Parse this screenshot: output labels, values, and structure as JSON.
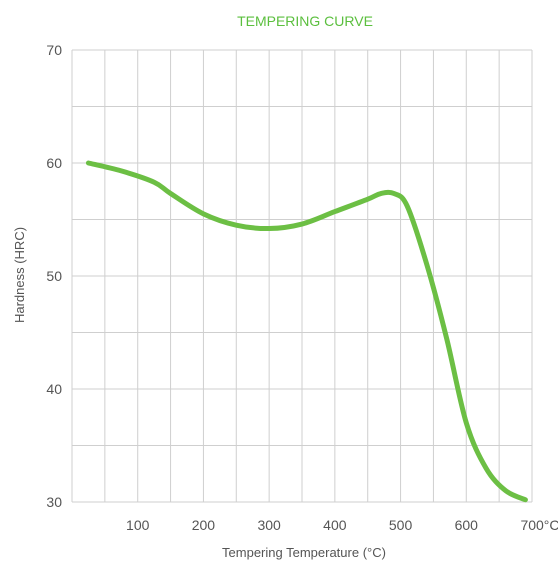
{
  "chart_data": {
    "type": "line",
    "title": "TEMPERING CURVE",
    "xlabel": "Tempering Temperature (°C)",
    "ylabel": "Hardness (HRC)",
    "x_unit_suffix": "°C",
    "xlim": [
      0,
      700
    ],
    "ylim": [
      30,
      70
    ],
    "x_grid_step": 50,
    "y_grid_step": 5,
    "x_ticks": [
      100,
      200,
      300,
      400,
      500,
      600,
      700
    ],
    "y_ticks": [
      30,
      40,
      50,
      60,
      70
    ],
    "grid": true,
    "colors": {
      "line": "#6cbf44",
      "title": "#5bbf3e",
      "grid": "#cfcfcf",
      "text": "#555555"
    },
    "series": [
      {
        "x": [
          25,
          75,
          125,
          150,
          200,
          250,
          300,
          350,
          400,
          450,
          470,
          490,
          510,
          540,
          570,
          600,
          630,
          660,
          690
        ],
        "y": [
          60.0,
          59.3,
          58.3,
          57.3,
          55.5,
          54.5,
          54.2,
          54.6,
          55.7,
          56.8,
          57.3,
          57.3,
          56.2,
          51.0,
          44.5,
          37.0,
          33.0,
          31.0,
          30.2
        ]
      }
    ]
  }
}
